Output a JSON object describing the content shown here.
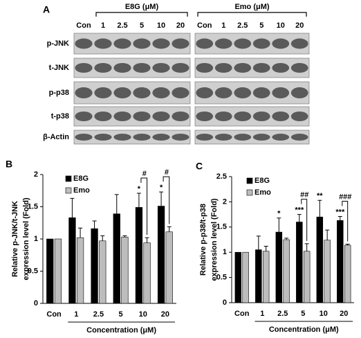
{
  "panel_a": {
    "label": "A",
    "groups": [
      {
        "name": "E8G (μM)",
        "lanes": [
          "Con",
          "1",
          "2.5",
          "5",
          "10",
          "20"
        ]
      },
      {
        "name": "Emo (μM)",
        "lanes": [
          "Con",
          "1",
          "2.5",
          "5",
          "10",
          "20"
        ]
      }
    ],
    "rows": [
      "p-JNK",
      "t-JNK",
      "p-p38",
      "t-p38",
      "β-Actin"
    ]
  },
  "chart_data": [
    {
      "type": "bar",
      "panel": "B",
      "y_label": [
        "Relative p-JNK/t-JNK",
        "expression level (Fold)"
      ],
      "x_label": "Concentration (μM)",
      "categories": [
        "Con",
        "1",
        "2.5",
        "5",
        "10",
        "20"
      ],
      "series": [
        {
          "name": "E8G",
          "color": "#000000",
          "values": [
            1,
            1.33,
            1.16,
            1.39,
            1.49,
            1.51
          ],
          "errors": [
            null,
            0.3,
            0.12,
            0.3,
            0.22,
            0.22
          ],
          "marks": [
            null,
            null,
            null,
            null,
            "*",
            "*"
          ]
        },
        {
          "name": "Emo",
          "color": "#bdbdbd",
          "values": [
            1,
            1.02,
            0.97,
            1.03,
            0.94,
            1.11
          ],
          "errors": [
            null,
            0.15,
            0.08,
            0.02,
            0.08,
            0.08
          ],
          "marks": [
            null,
            null,
            null,
            null,
            null,
            null
          ]
        }
      ],
      "bracket_labels": [
        null,
        null,
        null,
        null,
        "#",
        "#"
      ],
      "ylim": [
        0,
        2
      ],
      "yticks": [
        0,
        0.5,
        1,
        1.5,
        2
      ]
    },
    {
      "type": "bar",
      "panel": "C",
      "y_label": [
        "Relative p-p38/t-p38",
        "expression level (Fold)"
      ],
      "x_label": "Concentration (μM)",
      "categories": [
        "Con",
        "1",
        "2.5",
        "5",
        "10",
        "20"
      ],
      "series": [
        {
          "name": "E8G",
          "color": "#000000",
          "values": [
            1,
            1.05,
            1.4,
            1.6,
            1.7,
            1.63
          ],
          "errors": [
            null,
            0.27,
            0.28,
            0.15,
            0.33,
            0.08
          ],
          "marks": [
            null,
            null,
            "*",
            "***",
            "**",
            "***"
          ]
        },
        {
          "name": "Emo",
          "color": "#bdbdbd",
          "values": [
            1,
            1.02,
            1.25,
            1.02,
            1.24,
            1.14
          ],
          "errors": [
            null,
            0.1,
            0.03,
            0.15,
            0.2,
            0.02
          ],
          "marks": [
            null,
            null,
            null,
            null,
            null,
            null
          ]
        }
      ],
      "bracket_labels": [
        null,
        null,
        null,
        "##",
        null,
        "###"
      ],
      "ylim": [
        0,
        2.5
      ],
      "yticks": [
        0,
        0.5,
        1,
        1.5,
        2,
        2.5
      ]
    }
  ]
}
